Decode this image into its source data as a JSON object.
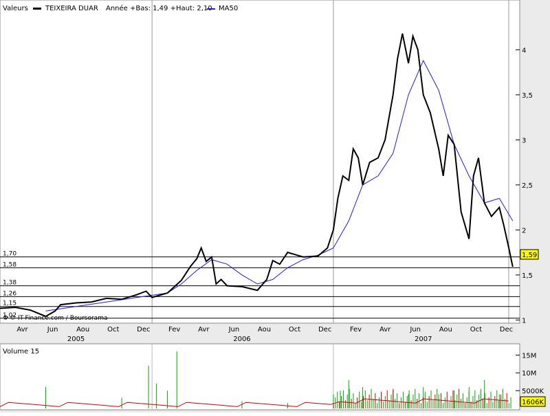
{
  "legend": {
    "prefix": "Valeurs",
    "series_name": "TEIXEIRA DUAR",
    "stats": "Année +Bas: 1,49 +Haut: 2,10",
    "ma_name": "MA50",
    "price_color": "#000000",
    "ma_color": "#1e1edc"
  },
  "credit": "© IT-Finance.com / Boursorama",
  "volume_title": "Volume 15",
  "last_price_badge": "1,59",
  "last_volume_badge": "1606K",
  "colors": {
    "badge": "#ffff00",
    "volume_up": "#00aa00",
    "volume_down": "#cc0000",
    "support_line": "#000000"
  },
  "chart_data": [
    {
      "type": "line",
      "title": "",
      "x_axis": {
        "months": [
          "Avr",
          "Jun",
          "Aou",
          "Oct",
          "Dec",
          "Fev",
          "Avr",
          "Jun",
          "Aou",
          "Oct",
          "Dec",
          "Fev",
          "Avr",
          "Jun",
          "Aou",
          "Oct",
          "Dec"
        ],
        "years": [
          "2005",
          "2006",
          "2007"
        ]
      },
      "y_axis": {
        "range": [
          0.98,
          4.4
        ],
        "ticks": [
          1,
          1.5,
          2,
          2.5,
          3,
          3.5,
          4
        ],
        "tick_labels": [
          "1",
          "1,5",
          "2",
          "2,5",
          "3",
          "3,5",
          "4"
        ],
        "side": "right"
      },
      "horizontal_levels": [
        {
          "value": 1.7,
          "label": "1,70"
        },
        {
          "value": 1.58,
          "label": "1,58"
        },
        {
          "value": 1.38,
          "label": "1,38"
        },
        {
          "value": 1.26,
          "label": "1,26"
        },
        {
          "value": 1.15,
          "label": "1,15"
        },
        {
          "value": 1.02,
          "label": "1,02"
        }
      ],
      "series": [
        {
          "name": "TEIXEIRA DUAR",
          "points": [
            [
              "2005-03",
              1.13
            ],
            [
              "2005-04",
              1.14
            ],
            [
              "2005-05",
              1.11
            ],
            [
              "2005-06",
              1.04
            ],
            [
              "2005-06-20",
              1.1
            ],
            [
              "2005-07",
              1.17
            ],
            [
              "2005-08",
              1.19
            ],
            [
              "2005-09",
              1.2
            ],
            [
              "2005-10",
              1.24
            ],
            [
              "2005-11",
              1.23
            ],
            [
              "2005-12",
              1.28
            ],
            [
              "2005-12-20",
              1.32
            ],
            [
              "2006-01",
              1.25
            ],
            [
              "2006-02",
              1.3
            ],
            [
              "2006-03",
              1.44
            ],
            [
              "2006-03-20",
              1.6
            ],
            [
              "2006-04",
              1.68
            ],
            [
              "2006-04-10",
              1.8
            ],
            [
              "2006-04-20",
              1.65
            ],
            [
              "2006-05",
              1.7
            ],
            [
              "2006-05-10",
              1.4
            ],
            [
              "2006-05-20",
              1.45
            ],
            [
              "2006-06",
              1.38
            ],
            [
              "2006-07",
              1.37
            ],
            [
              "2006-08",
              1.33
            ],
            [
              "2006-08-20",
              1.45
            ],
            [
              "2006-09",
              1.66
            ],
            [
              "2006-09-15",
              1.62
            ],
            [
              "2006-10",
              1.75
            ],
            [
              "2006-11",
              1.7
            ],
            [
              "2006-12",
              1.71
            ],
            [
              "2006-12-20",
              1.8
            ],
            [
              "2007-01",
              2.0
            ],
            [
              "2007-01-10",
              2.35
            ],
            [
              "2007-01-20",
              2.6
            ],
            [
              "2007-02",
              2.55
            ],
            [
              "2007-02-10",
              2.9
            ],
            [
              "2007-02-20",
              2.8
            ],
            [
              "2007-03",
              2.5
            ],
            [
              "2007-03-15",
              2.75
            ],
            [
              "2007-04",
              2.8
            ],
            [
              "2007-04-15",
              3.0
            ],
            [
              "2007-05",
              3.5
            ],
            [
              "2007-05-10",
              3.9
            ],
            [
              "2007-05-20",
              4.18
            ],
            [
              "2007-06",
              3.85
            ],
            [
              "2007-06-10",
              4.15
            ],
            [
              "2007-06-20",
              4.0
            ],
            [
              "2007-07",
              3.5
            ],
            [
              "2007-07-15",
              3.3
            ],
            [
              "2007-08",
              2.9
            ],
            [
              "2007-08-10",
              2.6
            ],
            [
              "2007-08-20",
              3.05
            ],
            [
              "2007-09",
              2.95
            ],
            [
              "2007-09-15",
              2.2
            ],
            [
              "2007-10",
              1.9
            ],
            [
              "2007-10-10",
              2.6
            ],
            [
              "2007-10-20",
              2.8
            ],
            [
              "2007-11",
              2.3
            ],
            [
              "2007-11-15",
              2.15
            ],
            [
              "2007-12",
              2.25
            ],
            [
              "2007-12-10",
              2.05
            ],
            [
              "2007-12-20",
              1.8
            ],
            [
              "2007-12-28",
              1.59
            ]
          ]
        },
        {
          "name": "MA50",
          "points": [
            [
              "2005-06",
              1.1
            ],
            [
              "2005-08",
              1.15
            ],
            [
              "2005-10",
              1.2
            ],
            [
              "2005-12",
              1.25
            ],
            [
              "2006-02",
              1.3
            ],
            [
              "2006-03",
              1.4
            ],
            [
              "2006-04",
              1.55
            ],
            [
              "2006-05",
              1.67
            ],
            [
              "2006-06",
              1.62
            ],
            [
              "2006-07",
              1.5
            ],
            [
              "2006-08",
              1.4
            ],
            [
              "2006-09",
              1.45
            ],
            [
              "2006-10",
              1.58
            ],
            [
              "2006-11",
              1.67
            ],
            [
              "2006-12",
              1.72
            ],
            [
              "2007-01",
              1.8
            ],
            [
              "2007-02",
              2.1
            ],
            [
              "2007-03",
              2.5
            ],
            [
              "2007-04",
              2.6
            ],
            [
              "2007-05",
              2.85
            ],
            [
              "2007-06",
              3.5
            ],
            [
              "2007-07",
              3.88
            ],
            [
              "2007-08",
              3.55
            ],
            [
              "2007-09",
              2.95
            ],
            [
              "2007-10",
              2.6
            ],
            [
              "2007-11",
              2.3
            ],
            [
              "2007-12",
              2.35
            ],
            [
              "2007-12-28",
              2.1
            ]
          ]
        }
      ]
    },
    {
      "type": "bar",
      "title": "Volume 15",
      "y_axis": {
        "range": [
          0,
          17000000
        ],
        "ticks": [
          5000000,
          10000000,
          15000000
        ],
        "tick_labels": [
          "5000K",
          "10M",
          "15M"
        ],
        "side": "right"
      },
      "spikes": [
        {
          "date": "2005-06",
          "value": 6000000
        },
        {
          "date": "2005-11",
          "value": 3000000
        },
        {
          "date": "2005-12-25",
          "value": 12000000
        },
        {
          "date": "2006-01-10",
          "value": 7000000
        },
        {
          "date": "2006-02",
          "value": 5000000
        },
        {
          "date": "2006-02-20",
          "value": 16000000
        },
        {
          "date": "2006-07",
          "value": 2000000
        },
        {
          "date": "2006-10",
          "value": 1500000
        },
        {
          "date": "2007-01",
          "value": 4000000
        },
        {
          "date": "2007-01-15",
          "value": 5000000
        },
        {
          "date": "2007-02",
          "value": 8000000
        },
        {
          "date": "2007-03",
          "value": 6000000
        },
        {
          "date": "2007-05",
          "value": 5000000
        },
        {
          "date": "2007-06",
          "value": 4000000
        },
        {
          "date": "2007-07",
          "value": 6000000
        },
        {
          "date": "2007-08",
          "value": 4000000
        },
        {
          "date": "2007-09",
          "value": 5000000
        },
        {
          "date": "2007-10",
          "value": 6000000
        },
        {
          "date": "2007-11",
          "value": 8000000
        },
        {
          "date": "2007-12",
          "value": 4000000
        }
      ],
      "last_value": "1606K"
    }
  ]
}
